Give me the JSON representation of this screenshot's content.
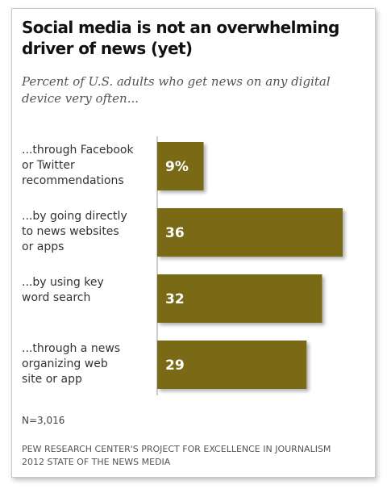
{
  "chart_data": {
    "type": "bar",
    "orientation": "horizontal",
    "title": "Social media is not an overwhelming driver of news (yet)",
    "subtitle": "Percent of U.S. adults who get news on any digital device very often...",
    "categories": [
      [
        "...through Facebook",
        "or Twitter",
        "recommendations"
      ],
      [
        "...by going directly",
        "to news websites",
        "or apps"
      ],
      [
        "...by using key",
        "word search"
      ],
      [
        "...through a news",
        "organizing web",
        "site or app"
      ]
    ],
    "values": [
      9,
      36,
      32,
      29
    ],
    "value_labels": [
      "9%",
      "36",
      "32",
      "29"
    ],
    "xlim": [
      0,
      36
    ],
    "grid": false,
    "legend": "none",
    "bar_color": "#7a6a14",
    "note": "N=3,016",
    "source": [
      "PEW RESEARCH CENTER'S PROJECT FOR EXCELLENCE IN JOURNALISM",
      "2012 STATE OF THE NEWS MEDIA"
    ]
  }
}
